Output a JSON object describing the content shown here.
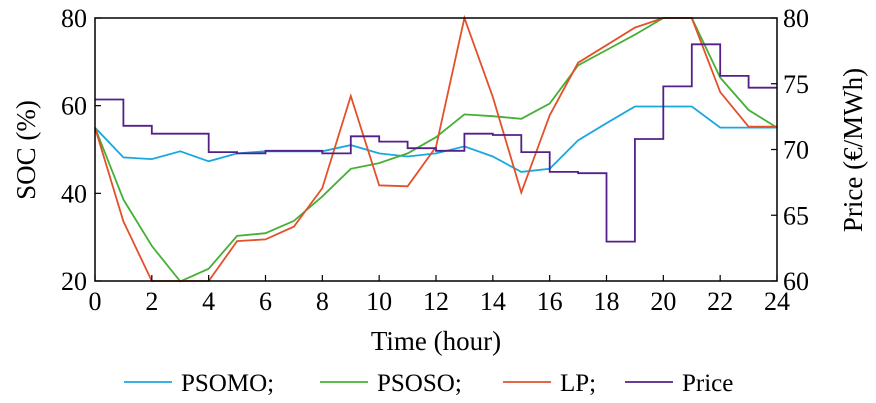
{
  "chart_data": {
    "type": "line",
    "xlabel": "Time (hour)",
    "ylabel": "SOC (%)",
    "y2label": "Price (€/MWh)",
    "xlim": [
      0,
      24
    ],
    "ylim": [
      20,
      80
    ],
    "y2lim": [
      60,
      80
    ],
    "xticks": [
      "0",
      "2",
      "4",
      "6",
      "8",
      "10",
      "12",
      "14",
      "16",
      "18",
      "20",
      "22",
      "24"
    ],
    "yticks": [
      "20",
      "40",
      "60",
      "80"
    ],
    "y2ticks": [
      "60",
      "65",
      "70",
      "75",
      "80"
    ],
    "grid": false,
    "legend_position": "bottom",
    "series": [
      {
        "name": "PSOMO;",
        "axis": "left",
        "step": false,
        "color": "#1aa7e0",
        "x": [
          0,
          1,
          2,
          3,
          4,
          5,
          6,
          7,
          8,
          9,
          10,
          11,
          12,
          13,
          14,
          15,
          16,
          17,
          18,
          19,
          20,
          21,
          22,
          23,
          24
        ],
        "values": [
          55,
          48.2,
          47.8,
          49.6,
          47.3,
          49.1,
          49.6,
          49.6,
          49.6,
          51,
          49.1,
          48.4,
          49.1,
          50.7,
          48.4,
          44.9,
          45.6,
          52.1,
          56,
          59.8,
          59.8,
          59.8,
          55,
          55,
          55
        ]
      },
      {
        "name": "PSOSO;",
        "axis": "left",
        "step": false,
        "color": "#45b035",
        "x": [
          0,
          1,
          2,
          3,
          4,
          5,
          6,
          7,
          8,
          9,
          10,
          11,
          12,
          13,
          14,
          15,
          16,
          17,
          18,
          19,
          20,
          21,
          22,
          23,
          24
        ],
        "values": [
          55,
          38.6,
          28,
          19.9,
          22.8,
          30.3,
          30.9,
          33.7,
          39.3,
          45.6,
          46.9,
          49.1,
          52.8,
          58,
          57.6,
          57,
          60.5,
          69.2,
          72.7,
          76.2,
          80,
          80,
          66.4,
          59,
          55
        ]
      },
      {
        "name": "LP;",
        "axis": "left",
        "step": false,
        "color": "#e4502a",
        "x": [
          0,
          1,
          2,
          3,
          4,
          5,
          6,
          7,
          8,
          9,
          10,
          11,
          12,
          13,
          14,
          15,
          16,
          17,
          18,
          19,
          20,
          21,
          22,
          23,
          24
        ],
        "values": [
          55,
          33.6,
          20,
          20,
          20,
          29.1,
          29.5,
          32.4,
          41.2,
          62.2,
          41.8,
          41.6,
          50.6,
          80,
          62,
          40.2,
          57.8,
          69.8,
          73.8,
          77.8,
          80,
          80,
          63.1,
          55.2,
          55.2
        ]
      },
      {
        "name": "Price",
        "axis": "right",
        "step": true,
        "color": "#53208a",
        "x": [
          0,
          1,
          2,
          3,
          4,
          5,
          6,
          7,
          8,
          9,
          10,
          11,
          12,
          13,
          14,
          15,
          16,
          17,
          18,
          19,
          20,
          21,
          22,
          23,
          24
        ],
        "values": [
          73.8,
          71.8,
          71.2,
          71.2,
          69.8,
          69.7,
          69.9,
          69.9,
          69.7,
          71,
          70.6,
          70.1,
          69.9,
          71.2,
          71.1,
          69.8,
          68.3,
          68.2,
          63,
          70.8,
          74.8,
          78,
          75.6,
          74.7,
          74.7
        ]
      }
    ]
  }
}
